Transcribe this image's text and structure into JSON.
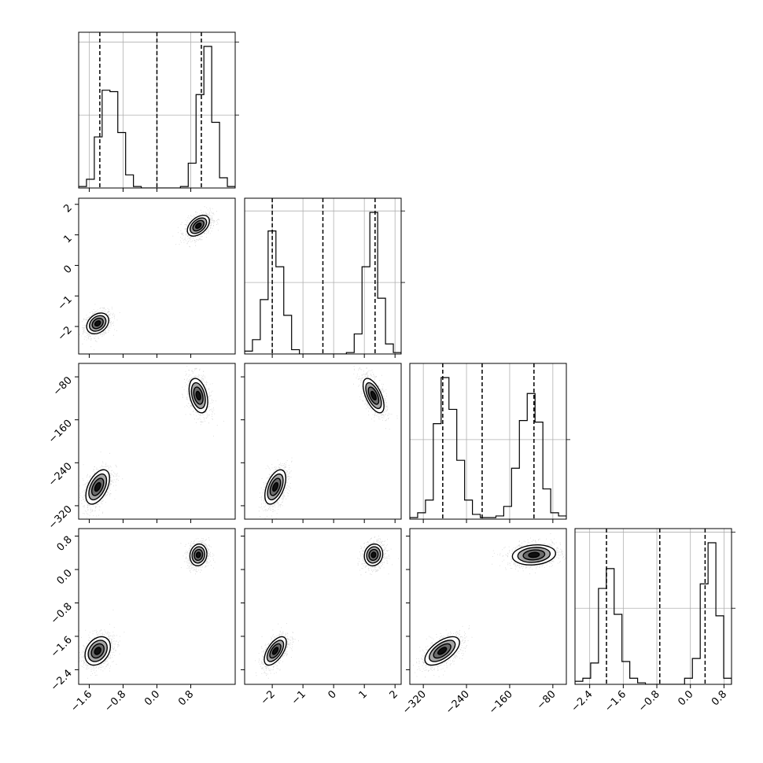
{
  "chart_data": {
    "type": "corner",
    "title": "",
    "n_parameters": 4,
    "parameter_labels": [
      "",
      "",
      "",
      ""
    ],
    "grid": true,
    "axes": [
      {
        "range": [
          -1.85,
          1.85
        ],
        "ticks": [
          -1.6,
          -0.8,
          0.0,
          0.8
        ],
        "tick_labels": [
          "−1.6",
          "−0.8",
          "0.0",
          "0.8"
        ]
      },
      {
        "range": [
          -2.9,
          2.2
        ],
        "ticks": [
          -2,
          -1,
          0,
          1,
          2
        ],
        "tick_labels": [
          "−2",
          "−1",
          "0",
          "1",
          "2"
        ]
      },
      {
        "range": [
          -345,
          -55
        ],
        "ticks": [
          -320,
          -240,
          -160,
          -80
        ],
        "tick_labels": [
          "−320",
          "−240",
          "−160",
          "−80"
        ]
      },
      {
        "range": [
          -2.75,
          0.98
        ],
        "ticks": [
          -2.4,
          -1.6,
          -0.8,
          0.0,
          0.8
        ],
        "tick_labels": [
          "−2.4",
          "−1.6",
          "−0.8",
          "0.0",
          "0.8"
        ]
      }
    ],
    "histograms": [
      {
        "parameter": 0,
        "bin_edges": [
          -1.85,
          -1.665,
          -1.48,
          -1.295,
          -1.11,
          -0.925,
          -0.74,
          -0.555,
          -0.37,
          -0.185,
          0.0,
          0.185,
          0.37,
          0.555,
          0.74,
          0.925,
          1.11,
          1.295,
          1.48,
          1.665,
          1.85
        ],
        "counts": [
          1,
          6,
          35,
          67,
          66,
          38,
          9,
          1,
          0,
          0,
          0,
          0,
          0,
          1,
          17,
          64,
          97,
          45,
          7,
          1
        ],
        "quantile_lines": [
          -1.35,
          0.0,
          1.05
        ]
      },
      {
        "parameter": 1,
        "bin_edges": [
          -2.9,
          -2.645,
          -2.39,
          -2.135,
          -1.88,
          -1.625,
          -1.37,
          -1.115,
          -0.86,
          -0.605,
          -0.35,
          -0.095,
          0.16,
          0.415,
          0.67,
          0.925,
          1.18,
          1.435,
          1.69,
          1.945,
          2.2
        ],
        "counts": [
          2,
          10,
          38,
          86,
          61,
          27,
          3,
          0,
          0,
          0,
          0,
          0,
          0,
          1,
          14,
          61,
          99,
          39,
          7,
          1
        ],
        "quantile_lines": [
          -2.0,
          -0.35,
          1.35
        ]
      },
      {
        "parameter": 2,
        "bin_edges": [
          -345,
          -330.5,
          -316,
          -301.5,
          -287,
          -272.5,
          -258,
          -243.5,
          -229,
          -214.5,
          -200,
          -185.5,
          -171,
          -156.5,
          -142,
          -127.5,
          -113,
          -98.5,
          -84,
          -69.5,
          -55
        ],
        "counts": [
          1,
          4,
          12,
          60,
          89,
          69,
          37,
          12,
          3,
          1,
          1,
          2,
          8,
          32,
          62,
          79,
          61,
          19,
          4,
          2
        ],
        "quantile_lines": [
          -284,
          -211,
          -115
        ]
      },
      {
        "parameter": 3,
        "bin_edges": [
          -2.75,
          -2.5635,
          -2.377,
          -2.1905,
          -2.004,
          -1.8175,
          -1.631,
          -1.4445,
          -1.258,
          -1.0715,
          -0.885,
          -0.6985,
          -0.512,
          -0.3255,
          -0.139,
          0.0475,
          0.234,
          0.4205,
          0.607,
          0.7935,
          0.98
        ],
        "counts": [
          2,
          4,
          14,
          63,
          76,
          46,
          15,
          4,
          1,
          0,
          0,
          0,
          0,
          0,
          4,
          17,
          66,
          93,
          45,
          4
        ],
        "quantile_lines": [
          -2.0,
          -0.73,
          0.35
        ]
      }
    ],
    "joint_modes": [
      {
        "x": 0,
        "y": 1,
        "modes": [
          {
            "center": [
              -1.4,
              -1.9
            ],
            "sd": [
              0.13,
              0.17
            ],
            "rho": 0.3
          },
          {
            "center": [
              0.98,
              1.3
            ],
            "sd": [
              0.13,
              0.17
            ],
            "rho": 0.45
          }
        ]
      },
      {
        "x": 0,
        "y": 2,
        "modes": [
          {
            "center": [
              -1.4,
              -285
            ],
            "sd": [
              0.14,
              16
            ],
            "rho": 0.5
          },
          {
            "center": [
              0.98,
              -115
            ],
            "sd": [
              0.11,
              16
            ],
            "rho": -0.35
          }
        ]
      },
      {
        "x": 1,
        "y": 2,
        "modes": [
          {
            "center": [
              -1.9,
              -285
            ],
            "sd": [
              0.17,
              16
            ],
            "rho": 0.5
          },
          {
            "center": [
              1.3,
              -115
            ],
            "sd": [
              0.17,
              16
            ],
            "rho": -0.6
          }
        ]
      },
      {
        "x": 0,
        "y": 3,
        "modes": [
          {
            "center": [
              -1.4,
              -1.95
            ],
            "sd": [
              0.15,
              0.17
            ],
            "rho": 0.3
          },
          {
            "center": [
              0.98,
              0.35
            ],
            "sd": [
              0.1,
              0.13
            ],
            "rho": 0.1
          }
        ]
      },
      {
        "x": 1,
        "y": 3,
        "modes": [
          {
            "center": [
              -1.9,
              -1.95
            ],
            "sd": [
              0.18,
              0.17
            ],
            "rho": 0.6
          },
          {
            "center": [
              1.3,
              0.35
            ],
            "sd": [
              0.15,
              0.13
            ],
            "rho": 0.1
          }
        ]
      },
      {
        "x": 2,
        "y": 3,
        "modes": [
          {
            "center": [
              -285,
              -1.95
            ],
            "sd": [
              16,
              0.17
            ],
            "rho": 0.6
          },
          {
            "center": [
              -115,
              0.35
            ],
            "sd": [
              20,
              0.12
            ],
            "rho": 0.15
          }
        ]
      }
    ],
    "contour_levels_sigma": [
      0.5,
      1.0,
      1.5,
      2.0
    ],
    "colors": {
      "points": "#000000",
      "contour_line": "#000000",
      "hist": "#000000",
      "grid": "#b0b0b0",
      "quantile": "#000000"
    }
  }
}
